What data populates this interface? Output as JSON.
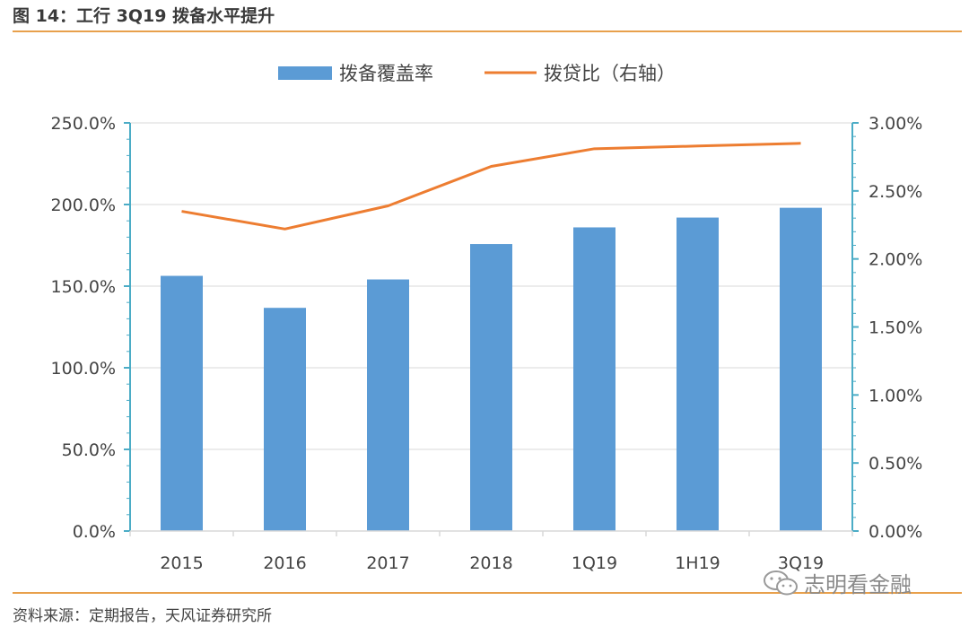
{
  "figure": {
    "title": "图 14：工行 3Q19 拨备水平提升",
    "source": "资料来源：定期报告，天风证券研究所",
    "watermark": "志明看金融"
  },
  "chart_data": {
    "type": "bar+line",
    "categories": [
      "2015",
      "2016",
      "2017",
      "2018",
      "1Q19",
      "1H19",
      "3Q19"
    ],
    "series": [
      {
        "name": "拨备覆盖率",
        "type": "bar",
        "axis": "left",
        "color": "#5b9bd5",
        "values": [
          156.3,
          136.7,
          154.1,
          175.8,
          186.0,
          192.0,
          198.0
        ]
      },
      {
        "name": "拨贷比（右轴）",
        "type": "line",
        "axis": "right",
        "color": "#ed7d31",
        "values": [
          2.35,
          2.22,
          2.39,
          2.68,
          2.81,
          2.83,
          2.85
        ]
      }
    ],
    "y_left": {
      "min": 0,
      "max": 250,
      "step": 50,
      "tick_labels": [
        "0.0%",
        "50.0%",
        "100.0%",
        "150.0%",
        "200.0%",
        "250.0%"
      ]
    },
    "y_right": {
      "min": 0,
      "max": 3,
      "step": 0.5,
      "tick_labels": [
        "0.00%",
        "0.50%",
        "1.00%",
        "1.50%",
        "2.00%",
        "2.50%",
        "3.00%"
      ]
    },
    "grid": true,
    "legend": "top-center",
    "colors": {
      "axis": "#4bacc6",
      "grid": "#d9d9d9"
    }
  }
}
